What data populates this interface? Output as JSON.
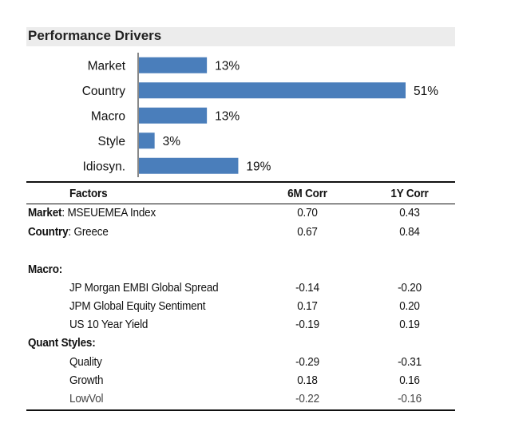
{
  "title": "Performance Drivers",
  "chart_data": {
    "type": "bar",
    "orientation": "horizontal",
    "categories": [
      "Market",
      "Country",
      "Macro",
      "Style",
      "Idiosyn."
    ],
    "values": [
      13,
      51,
      13,
      3,
      19
    ],
    "value_labels": [
      "13%",
      "51%",
      "13%",
      "3%",
      "19%"
    ],
    "xlim": [
      0,
      51
    ],
    "bar_color": "#4a7ebb",
    "grid": false
  },
  "table": {
    "headers": {
      "factor": "Factors",
      "corr6m": "6M Corr",
      "corr1y": "1Y Corr"
    },
    "market": {
      "label": "Market",
      "name": "MSEUEMEA Index",
      "corr6m": "0.70",
      "corr1y": "0.43"
    },
    "country": {
      "label": "Country",
      "name": "Greece",
      "corr6m": "0.67",
      "corr1y": "0.84"
    },
    "macro_title": "Macro:",
    "macro_rows": [
      {
        "name": "JP Morgan EMBI Global Spread",
        "corr6m": "-0.14",
        "corr1y": "-0.20"
      },
      {
        "name": "JPM Global Equity Sentiment",
        "corr6m": "0.17",
        "corr1y": "0.20"
      },
      {
        "name": "US 10 Year Yield",
        "corr6m": "-0.19",
        "corr1y": "0.19"
      }
    ],
    "quant_title": "Quant Styles:",
    "quant_rows": [
      {
        "name": "Quality",
        "corr6m": "-0.29",
        "corr1y": "-0.31"
      },
      {
        "name": "Growth",
        "corr6m": "0.18",
        "corr1y": "0.16"
      },
      {
        "name": "LowVol",
        "corr6m": "-0.22",
        "corr1y": "-0.16"
      }
    ]
  }
}
